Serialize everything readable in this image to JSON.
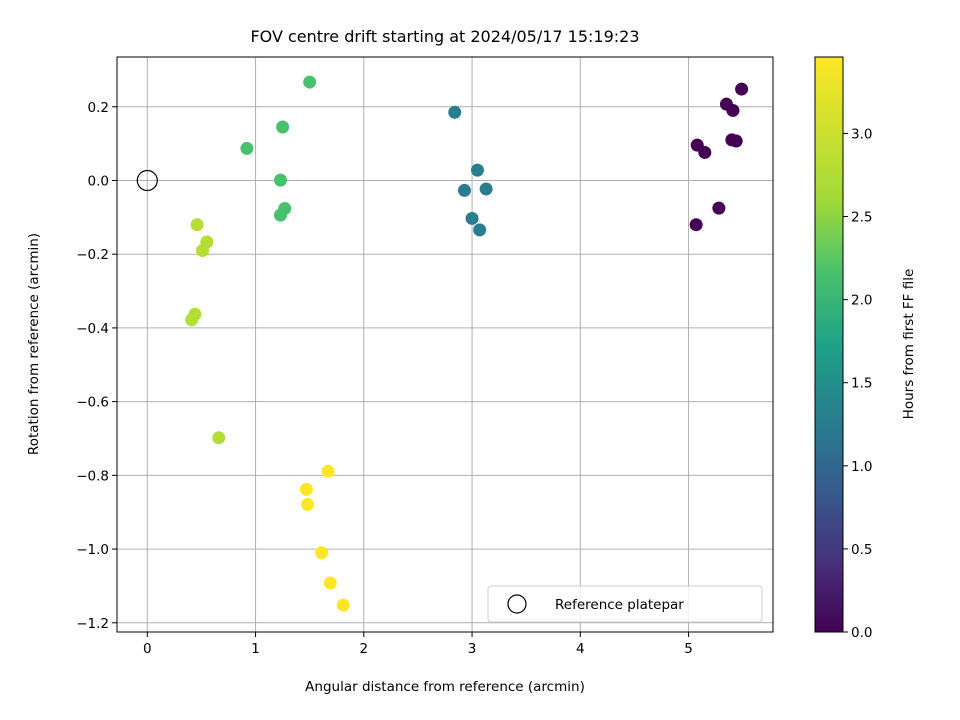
{
  "chart_data": {
    "type": "scatter",
    "title": "FOV centre drift starting at 2024/05/17 15:19:23",
    "xlabel": "Angular distance from reference (arcmin)",
    "ylabel": "Rotation from reference (arcmin)",
    "xlim": [
      -0.28,
      5.78
    ],
    "ylim": [
      -1.225,
      0.335
    ],
    "xticks": [
      0,
      1,
      2,
      3,
      4,
      5
    ],
    "xtick_labels": [
      "0",
      "1",
      "2",
      "3",
      "4",
      "5"
    ],
    "yticks": [
      0.2,
      0.0,
      -0.2,
      -0.4,
      -0.6,
      -0.8,
      -1.0,
      -1.2
    ],
    "ytick_labels": [
      "0.2",
      "0.0",
      "−0.2",
      "−0.4",
      "−0.6",
      "−0.8",
      "−1.0",
      "−1.2"
    ],
    "grid": true,
    "legend": {
      "placement": "bottom-right",
      "entries": [
        "Reference platepar"
      ]
    },
    "reference_point": {
      "name": "Reference platepar",
      "x": 0.0,
      "y": 0.0
    },
    "colorbar": {
      "label": "Hours from first FF file",
      "range": [
        0.0,
        3.46
      ],
      "ticks": [
        0.0,
        0.5,
        1.0,
        1.5,
        2.0,
        2.5,
        3.0
      ],
      "tick_labels": [
        "0.0",
        "0.5",
        "1.0",
        "1.5",
        "2.0",
        "2.5",
        "3.0"
      ],
      "colormap": "viridis"
    },
    "points": [
      {
        "x": 5.49,
        "y": 0.248,
        "c": 0.0
      },
      {
        "x": 5.35,
        "y": 0.207,
        "c": 0.0
      },
      {
        "x": 5.41,
        "y": 0.19,
        "c": 0.0
      },
      {
        "x": 5.4,
        "y": 0.11,
        "c": 0.0
      },
      {
        "x": 5.44,
        "y": 0.107,
        "c": 0.0
      },
      {
        "x": 5.08,
        "y": 0.096,
        "c": 0.0
      },
      {
        "x": 5.15,
        "y": 0.076,
        "c": 0.0
      },
      {
        "x": 5.28,
        "y": -0.075,
        "c": 0.0
      },
      {
        "x": 5.07,
        "y": -0.12,
        "c": 0.0
      },
      {
        "x": 2.84,
        "y": 0.185,
        "c": 1.28
      },
      {
        "x": 3.05,
        "y": 0.028,
        "c": 1.28
      },
      {
        "x": 3.13,
        "y": -0.023,
        "c": 1.28
      },
      {
        "x": 2.93,
        "y": -0.027,
        "c": 1.28
      },
      {
        "x": 3.0,
        "y": -0.103,
        "c": 1.28
      },
      {
        "x": 3.07,
        "y": -0.134,
        "c": 1.28
      },
      {
        "x": 1.5,
        "y": 0.267,
        "c": 2.15
      },
      {
        "x": 1.25,
        "y": 0.145,
        "c": 2.15
      },
      {
        "x": 0.92,
        "y": 0.087,
        "c": 2.15
      },
      {
        "x": 1.23,
        "y": 0.001,
        "c": 2.15
      },
      {
        "x": 1.27,
        "y": -0.076,
        "c": 2.15
      },
      {
        "x": 1.23,
        "y": -0.094,
        "c": 2.15
      },
      {
        "x": 0.46,
        "y": -0.12,
        "c": 2.78
      },
      {
        "x": 0.55,
        "y": -0.167,
        "c": 2.78
      },
      {
        "x": 0.51,
        "y": -0.19,
        "c": 2.78
      },
      {
        "x": 0.44,
        "y": -0.363,
        "c": 2.78
      },
      {
        "x": 0.41,
        "y": -0.378,
        "c": 2.78
      },
      {
        "x": 0.66,
        "y": -0.698,
        "c": 2.78
      },
      {
        "x": 1.67,
        "y": -0.789,
        "c": 3.46
      },
      {
        "x": 1.47,
        "y": -0.838,
        "c": 3.46
      },
      {
        "x": 1.48,
        "y": -0.879,
        "c": 3.46
      },
      {
        "x": 1.61,
        "y": -1.01,
        "c": 3.46
      },
      {
        "x": 1.69,
        "y": -1.092,
        "c": 3.46
      },
      {
        "x": 1.81,
        "y": -1.152,
        "c": 3.46
      }
    ]
  }
}
